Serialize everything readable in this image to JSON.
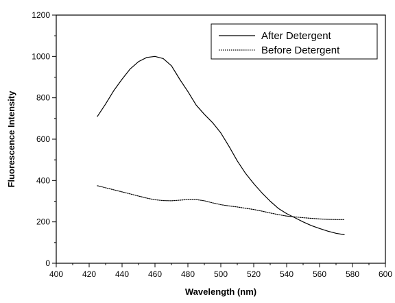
{
  "chart_data": {
    "type": "line",
    "title": "",
    "xlabel": "Wavelength (nm)",
    "ylabel": "Fluorescence Intensity",
    "xlim": [
      400,
      600
    ],
    "ylim": [
      0,
      1200
    ],
    "x_ticks": [
      "400",
      "420",
      "440",
      "460",
      "480",
      "500",
      "520",
      "540",
      "560",
      "580",
      "600"
    ],
    "y_ticks": [
      "0",
      "200",
      "400",
      "600",
      "800",
      "1000",
      "1200"
    ],
    "grid": false,
    "legend_position": "top-right",
    "series": [
      {
        "name": "After Detergent",
        "style": "solid",
        "color": "#000000",
        "x": [
          425,
          430,
          435,
          440,
          445,
          450,
          455,
          460,
          465,
          470,
          475,
          480,
          485,
          490,
          495,
          500,
          505,
          510,
          515,
          520,
          525,
          530,
          535,
          540,
          545,
          550,
          555,
          560,
          565,
          570,
          575
        ],
        "y": [
          710,
          770,
          835,
          890,
          940,
          975,
          995,
          1000,
          990,
          955,
          890,
          830,
          765,
          720,
          680,
          630,
          565,
          495,
          435,
          385,
          340,
          300,
          265,
          240,
          220,
          200,
          182,
          168,
          155,
          145,
          138
        ]
      },
      {
        "name": "Before Detergent",
        "style": "dotted",
        "color": "#000000",
        "x": [
          425,
          430,
          435,
          440,
          445,
          450,
          455,
          460,
          465,
          470,
          475,
          480,
          485,
          490,
          495,
          500,
          505,
          510,
          515,
          520,
          525,
          530,
          535,
          540,
          545,
          550,
          555,
          560,
          565,
          570,
          575
        ],
        "y": [
          375,
          365,
          355,
          345,
          335,
          325,
          315,
          307,
          303,
          302,
          305,
          308,
          308,
          302,
          292,
          283,
          277,
          272,
          266,
          260,
          252,
          243,
          235,
          228,
          224,
          220,
          217,
          214,
          212,
          211,
          211
        ]
      }
    ]
  }
}
